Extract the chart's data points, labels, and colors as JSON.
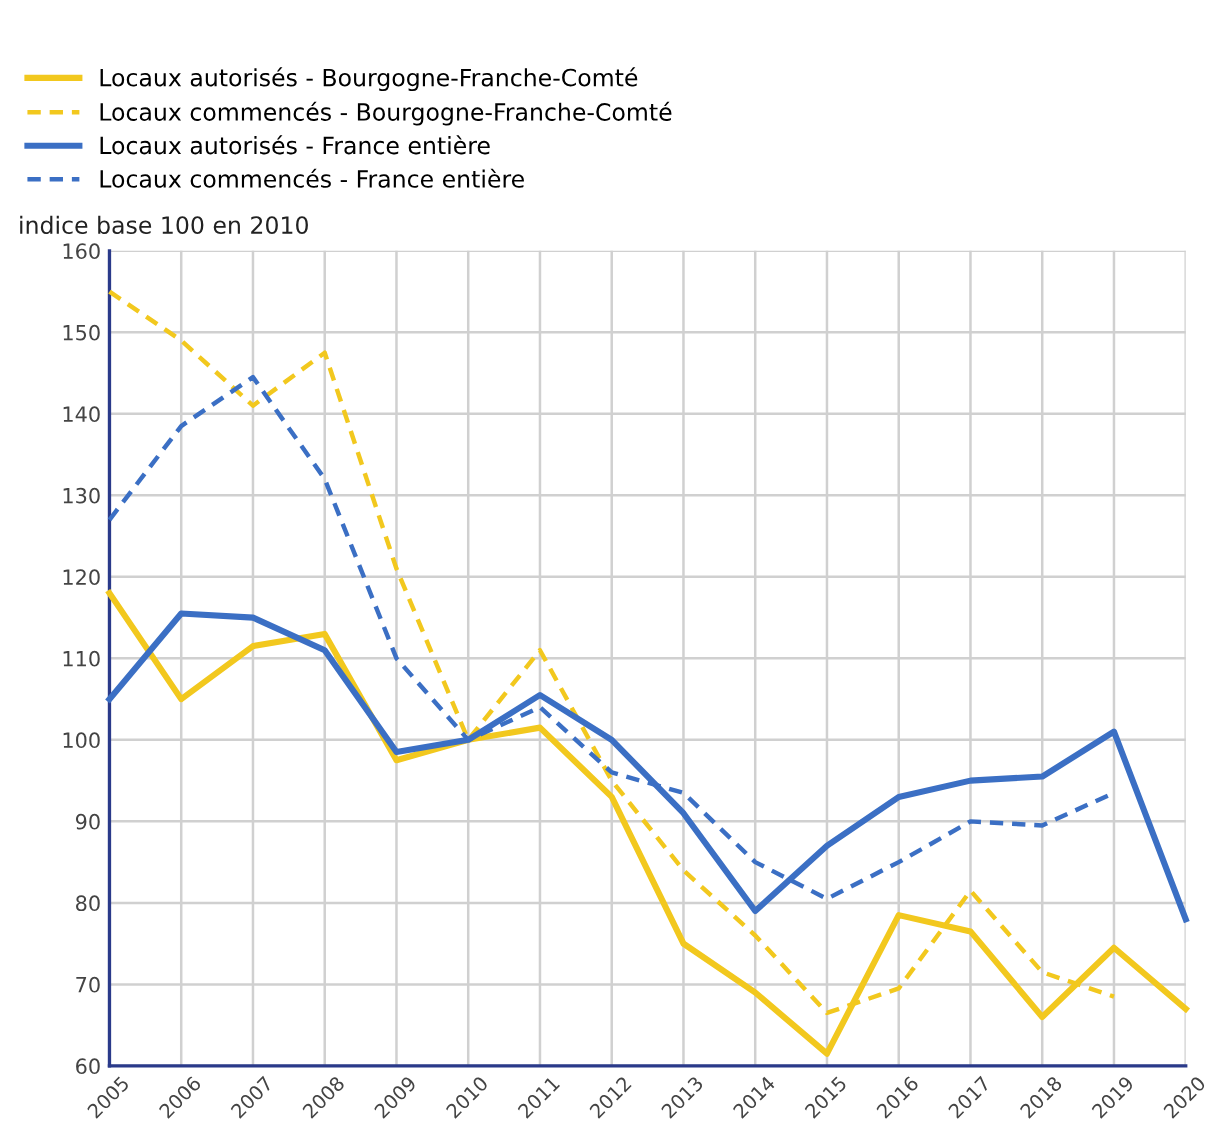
{
  "chart_data": {
    "type": "line",
    "ylabel": "indice base 100 en 2010",
    "x": [
      2005,
      2006,
      2007,
      2008,
      2009,
      2010,
      2011,
      2012,
      2013,
      2014,
      2015,
      2016,
      2017,
      2018,
      2019,
      2020
    ],
    "xlim": [
      2005,
      2020
    ],
    "xticks": [
      2005,
      2006,
      2007,
      2008,
      2009,
      2010,
      2011,
      2012,
      2013,
      2014,
      2015,
      2016,
      2017,
      2018,
      2019,
      2020
    ],
    "ylim": [
      60,
      160
    ],
    "yticks": [
      60,
      70,
      80,
      90,
      100,
      110,
      120,
      130,
      140,
      150,
      160
    ],
    "grid": true,
    "legend": "top left",
    "marker": "none",
    "series": [
      {
        "name": "Locaux autorisés - Bourgogne-Franche-Comté",
        "color": "#f2c81e",
        "line_style": "solid",
        "values": [
          118,
          105,
          111.5,
          113,
          97.5,
          100,
          101.5,
          93,
          75,
          69,
          61.5,
          78.5,
          76.5,
          66,
          74.5,
          67
        ]
      },
      {
        "name": "Locaux commencés - Bourgogne-Franche-Comté",
        "color": "#f2c81e",
        "line_style": "dashed",
        "values": [
          155,
          149,
          141,
          147.5,
          121,
          100,
          111,
          95,
          84,
          76,
          66.5,
          69.5,
          81.5,
          71.5,
          68.5,
          null
        ]
      },
      {
        "name": "Locaux autorisés - France entière",
        "color": "#3b6fc4",
        "line_style": "solid",
        "values": [
          105,
          115.5,
          115,
          111,
          98.5,
          100,
          105.5,
          100,
          91,
          79,
          87,
          93,
          95,
          95.5,
          101,
          78
        ]
      },
      {
        "name": "Locaux commencés - France entière",
        "color": "#3b6fc4",
        "line_style": "dashed",
        "values": [
          127,
          138.5,
          144.5,
          132,
          110,
          100,
          104,
          96,
          93.5,
          85,
          80.5,
          85,
          90,
          89.5,
          93.5,
          null
        ]
      }
    ]
  }
}
